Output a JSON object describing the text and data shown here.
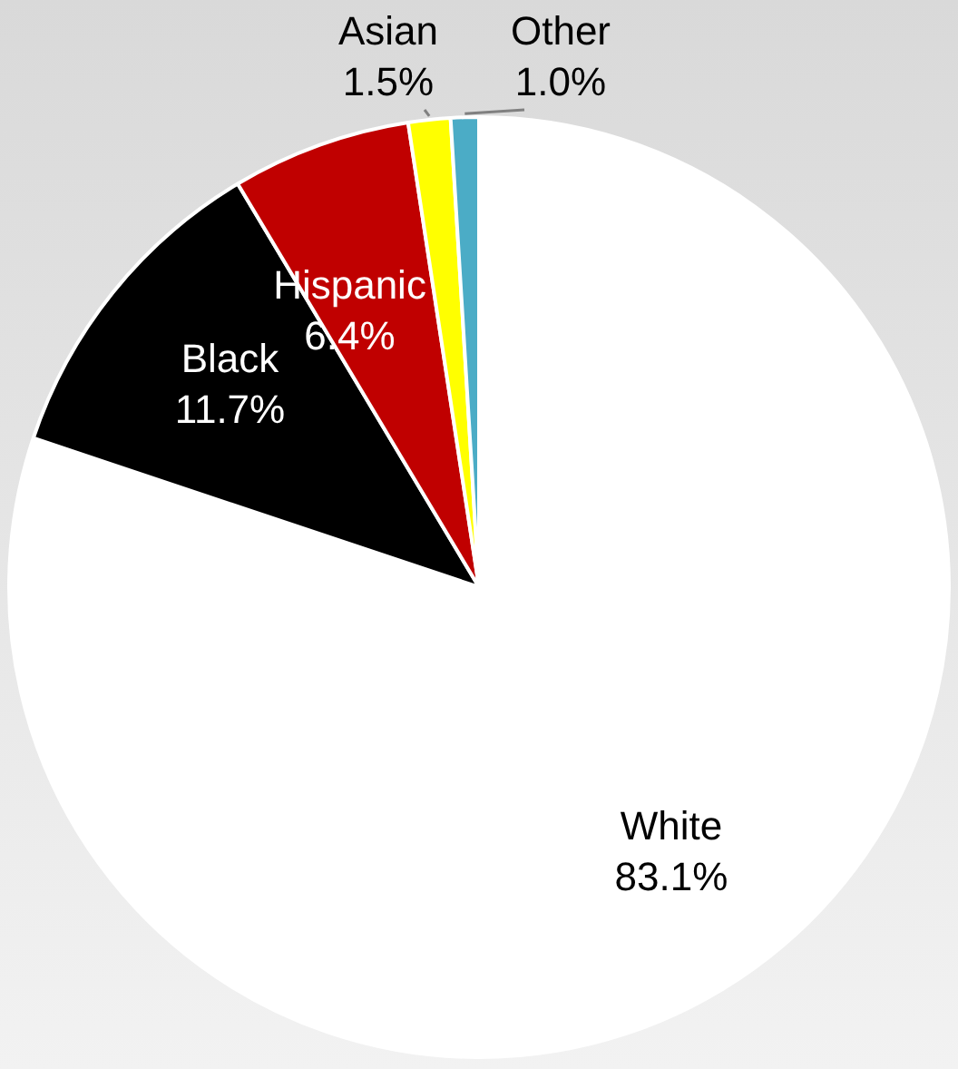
{
  "chart_data": {
    "type": "pie",
    "categories": [
      "White",
      "Black",
      "Hispanic",
      "Asian",
      "Other"
    ],
    "values": [
      83.1,
      11.7,
      6.4,
      1.5,
      1.0
    ],
    "value_labels": [
      "83.1%",
      "11.7%",
      "6.4%",
      "1.5%",
      "1.0%"
    ],
    "colors": [
      "#ffffff",
      "#000000",
      "#c00000",
      "#ffff00",
      "#4bacc6"
    ],
    "legend": false
  }
}
